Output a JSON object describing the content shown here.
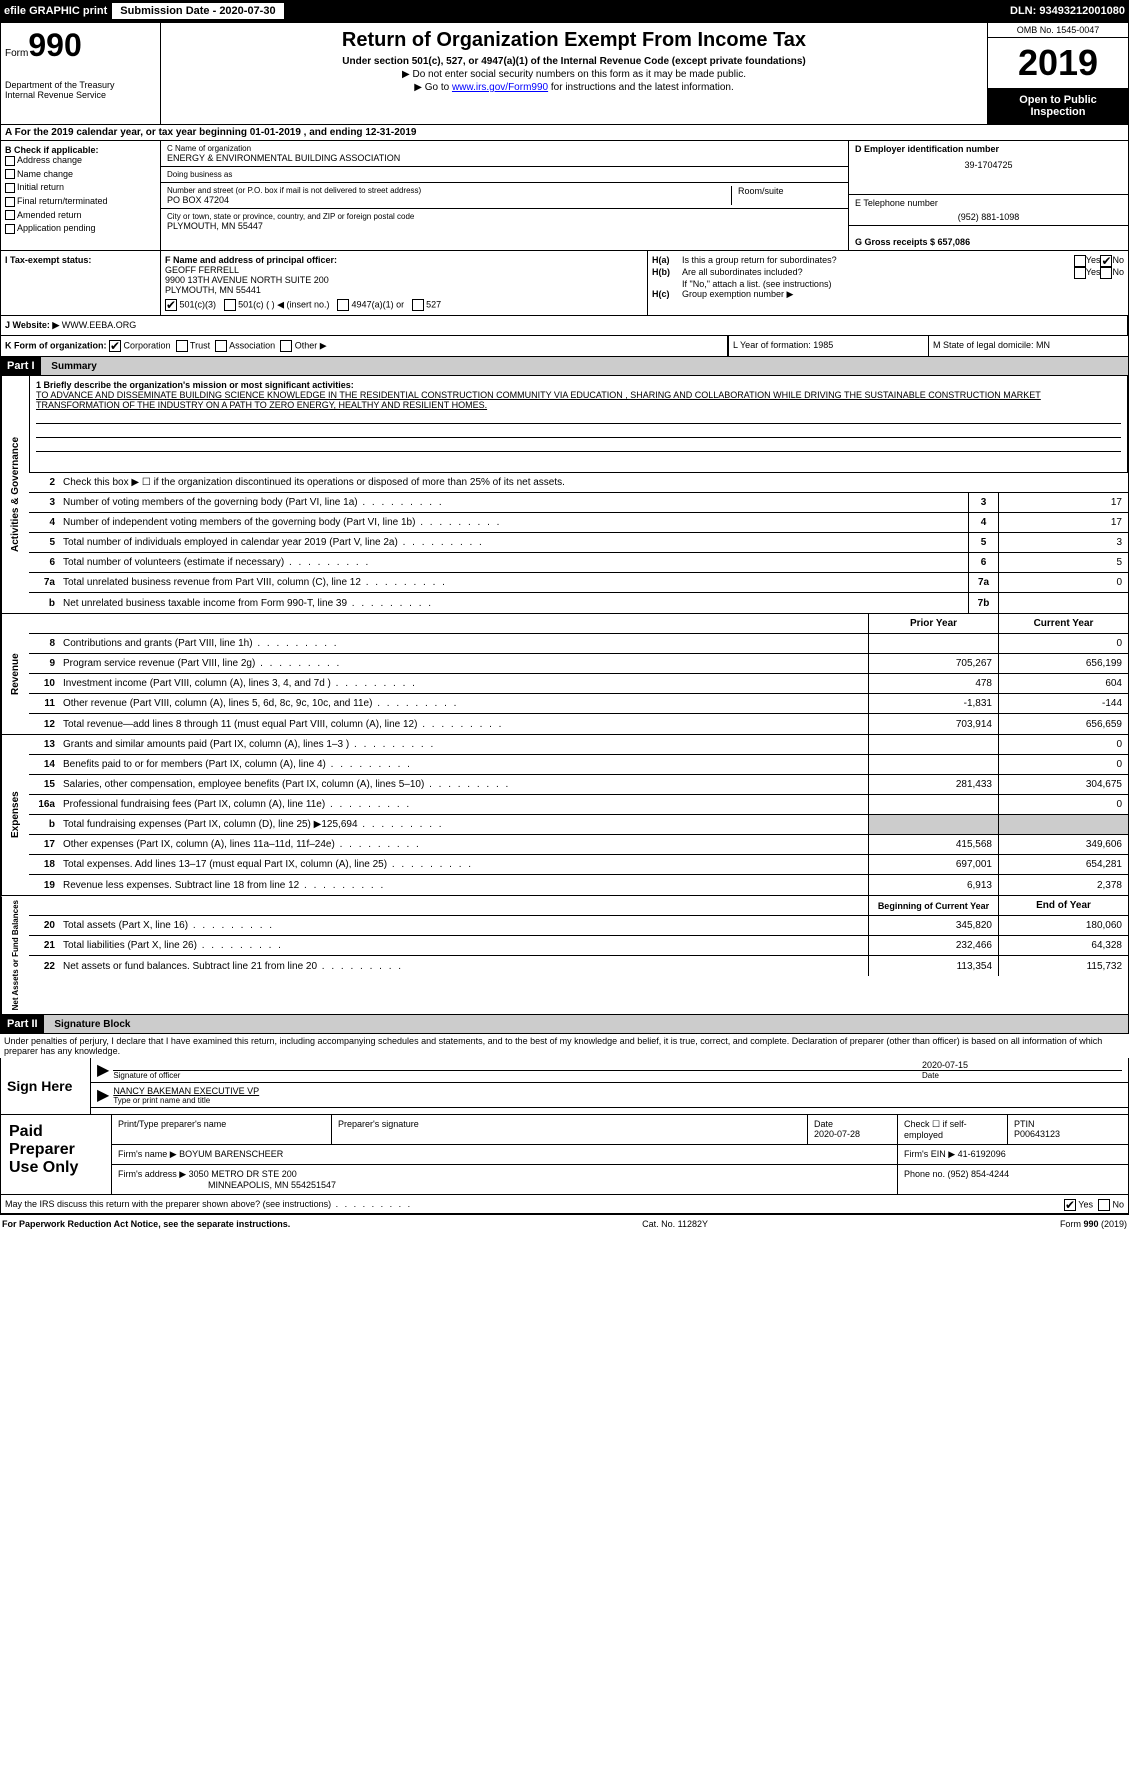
{
  "topbar": {
    "efile": "efile GRAPHIC print",
    "submission_label": "Submission Date - 2020-07-30",
    "dln": "DLN: 93493212001080"
  },
  "header": {
    "form_prefix": "Form",
    "form_number": "990",
    "dept": "Department of the Treasury",
    "irs": "Internal Revenue Service",
    "title": "Return of Organization Exempt From Income Tax",
    "subtitle": "Under section 501(c), 527, or 4947(a)(1) of the Internal Revenue Code (except private foundations)",
    "instr1": "▶ Do not enter social security numbers on this form as it may be made public.",
    "instr2_prefix": "▶ Go to ",
    "instr2_link": "www.irs.gov/Form990",
    "instr2_suffix": " for instructions and the latest information.",
    "omb": "OMB No. 1545-0047",
    "year": "2019",
    "open_public": "Open to Public Inspection"
  },
  "row_a": "A  For the 2019 calendar year, or tax year beginning 01-01-2019       , and ending 12-31-2019",
  "section_b": {
    "label": "B Check if applicable:",
    "items": [
      "Address change",
      "Name change",
      "Initial return",
      "Final return/terminated",
      "Amended return",
      "Application pending"
    ]
  },
  "section_c": {
    "name_label": "C Name of organization",
    "name": "ENERGY & ENVIRONMENTAL BUILDING ASSOCIATION",
    "dba_label": "Doing business as",
    "dba": "",
    "street_label": "Number and street (or P.O. box if mail is not delivered to street address)",
    "street": "PO BOX 47204",
    "room_label": "Room/suite",
    "city_label": "City or town, state or province, country, and ZIP or foreign postal code",
    "city": "PLYMOUTH, MN   55447"
  },
  "section_d": {
    "label": "D Employer identification number",
    "ein": "39-1704725"
  },
  "section_e": {
    "label": "E Telephone number",
    "phone": "(952) 881-1098"
  },
  "section_g": {
    "label": "G Gross receipts $ 657,086"
  },
  "section_f": {
    "label": "F  Name and address of principal officer:",
    "name": "GEOFF FERRELL",
    "addr": "9900 13TH AVENUE NORTH SUITE 200",
    "city": "PLYMOUTH, MN   55441"
  },
  "section_h": {
    "a_label": "H(a)",
    "a_text": "Is this a group return for subordinates?",
    "b_label": "H(b)",
    "b_text": "Are all subordinates included?",
    "b_note": "If \"No,\" attach a list. (see instructions)",
    "c_label": "H(c)",
    "c_text": "Group exemption number ▶"
  },
  "tax_exempt": {
    "label": "I    Tax-exempt status:",
    "opts": [
      "501(c)(3)",
      "501(c) (   ) ◀ (insert no.)",
      "4947(a)(1) or",
      "527"
    ]
  },
  "website": {
    "label": "J   Website: ▶",
    "url": "WWW.EEBA.ORG"
  },
  "section_k": {
    "label": "K Form of organization:",
    "opts": [
      "Corporation",
      "Trust",
      "Association",
      "Other ▶"
    ]
  },
  "section_l": {
    "label": "L Year of formation: 1985"
  },
  "section_m": {
    "label": "M State of legal domicile: MN"
  },
  "part1": {
    "header": "Part I",
    "title": "Summary",
    "q1_label": "1   Briefly describe the organization's mission or most significant activities:",
    "mission": "TO ADVANCE AND DISSEMINATE BUILDING SCIENCE KNOWLEDGE IN THE RESIDENTIAL CONSTRUCTION COMMUNITY VIA EDUCATION , SHARING AND COLLABORATION WHILE DRIVING THE SUSTAINABLE CONSTRUCTION MARKET TRANSFORMATION OF THE INDUSTRY ON A PATH TO ZERO ENERGY, HEALTHY AND RESILIENT HOMES.",
    "q2": "Check this box ▶ ☐  if the organization discontinued its operations or disposed of more than 25% of its net assets.",
    "governance_rows": [
      {
        "n": "3",
        "desc": "Number of voting members of the governing body (Part VI, line 1a)",
        "box": "3",
        "val": "17"
      },
      {
        "n": "4",
        "desc": "Number of independent voting members of the governing body (Part VI, line 1b)",
        "box": "4",
        "val": "17"
      },
      {
        "n": "5",
        "desc": "Total number of individuals employed in calendar year 2019 (Part V, line 2a)",
        "box": "5",
        "val": "3"
      },
      {
        "n": "6",
        "desc": "Total number of volunteers (estimate if necessary)",
        "box": "6",
        "val": "5"
      },
      {
        "n": "7a",
        "desc": "Total unrelated business revenue from Part VIII, column (C), line 12",
        "box": "7a",
        "val": "0"
      },
      {
        "n": "b",
        "desc": "Net unrelated business taxable income from Form 990-T, line 39",
        "box": "7b",
        "val": ""
      }
    ],
    "col_headers": {
      "prior": "Prior Year",
      "current": "Current Year"
    },
    "revenue_rows": [
      {
        "n": "8",
        "desc": "Contributions and grants (Part VIII, line 1h)",
        "prior": "",
        "cur": "0"
      },
      {
        "n": "9",
        "desc": "Program service revenue (Part VIII, line 2g)",
        "prior": "705,267",
        "cur": "656,199"
      },
      {
        "n": "10",
        "desc": "Investment income (Part VIII, column (A), lines 3, 4, and 7d )",
        "prior": "478",
        "cur": "604"
      },
      {
        "n": "11",
        "desc": "Other revenue (Part VIII, column (A), lines 5, 6d, 8c, 9c, 10c, and 11e)",
        "prior": "-1,831",
        "cur": "-144"
      },
      {
        "n": "12",
        "desc": "Total revenue—add lines 8 through 11 (must equal Part VIII, column (A), line 12)",
        "prior": "703,914",
        "cur": "656,659"
      }
    ],
    "expense_rows": [
      {
        "n": "13",
        "desc": "Grants and similar amounts paid (Part IX, column (A), lines 1–3 )",
        "prior": "",
        "cur": "0"
      },
      {
        "n": "14",
        "desc": "Benefits paid to or for members (Part IX, column (A), line 4)",
        "prior": "",
        "cur": "0"
      },
      {
        "n": "15",
        "desc": "Salaries, other compensation, employee benefits (Part IX, column (A), lines 5–10)",
        "prior": "281,433",
        "cur": "304,675"
      },
      {
        "n": "16a",
        "desc": "Professional fundraising fees (Part IX, column (A), line 11e)",
        "prior": "",
        "cur": "0"
      },
      {
        "n": "b",
        "desc": "Total fundraising expenses (Part IX, column (D), line 25) ▶125,694",
        "prior": "shaded",
        "cur": "shaded"
      },
      {
        "n": "17",
        "desc": "Other expenses (Part IX, column (A), lines 11a–11d, 11f–24e)",
        "prior": "415,568",
        "cur": "349,606"
      },
      {
        "n": "18",
        "desc": "Total expenses. Add lines 13–17 (must equal Part IX, column (A), line 25)",
        "prior": "697,001",
        "cur": "654,281"
      },
      {
        "n": "19",
        "desc": "Revenue less expenses. Subtract line 18 from line 12",
        "prior": "6,913",
        "cur": "2,378"
      }
    ],
    "net_headers": {
      "begin": "Beginning of Current Year",
      "end": "End of Year"
    },
    "net_rows": [
      {
        "n": "20",
        "desc": "Total assets (Part X, line 16)",
        "prior": "345,820",
        "cur": "180,060"
      },
      {
        "n": "21",
        "desc": "Total liabilities (Part X, line 26)",
        "prior": "232,466",
        "cur": "64,328"
      },
      {
        "n": "22",
        "desc": "Net assets or fund balances. Subtract line 21 from line 20",
        "prior": "113,354",
        "cur": "115,732"
      }
    ],
    "side_labels": {
      "gov": "Activities & Governance",
      "rev": "Revenue",
      "exp": "Expenses",
      "net": "Net Assets or Fund Balances"
    }
  },
  "part2": {
    "header": "Part II",
    "title": "Signature Block",
    "declaration": "Under penalties of perjury, I declare that I have examined this return, including accompanying schedules and statements, and to the best of my knowledge and belief, it is true, correct, and complete. Declaration of preparer (other than officer) is based on all information of which preparer has any knowledge.",
    "sign_here": "Sign Here",
    "sig_officer": "Signature of officer",
    "sig_date": "2020-07-15",
    "date_label": "Date",
    "officer_name": "NANCY BAKEMAN  EXECUTIVE VP",
    "officer_type": "Type or print name and title",
    "paid_prep": "Paid Preparer Use Only",
    "prep_name_label": "Print/Type preparer's name",
    "prep_sig_label": "Preparer's signature",
    "prep_date_label": "Date",
    "prep_date": "2020-07-28",
    "check_if": "Check ☐ if self-employed",
    "ptin_label": "PTIN",
    "ptin": "P00643123",
    "firm_name_label": "Firm's name     ▶",
    "firm_name": "BOYUM BARENSCHEER",
    "firm_ein_label": "Firm's EIN ▶",
    "firm_ein": "41-6192096",
    "firm_addr_label": "Firm's address ▶",
    "firm_addr": "3050 METRO DR STE 200",
    "firm_city": "MINNEAPOLIS, MN  554251547",
    "phone_label": "Phone no. (952) 854-4244",
    "discuss": "May the IRS discuss this return with the preparer shown above? (see instructions)"
  },
  "footer": {
    "left": "For Paperwork Reduction Act Notice, see the separate instructions.",
    "mid": "Cat. No. 11282Y",
    "right": "Form 990 (2019)"
  }
}
